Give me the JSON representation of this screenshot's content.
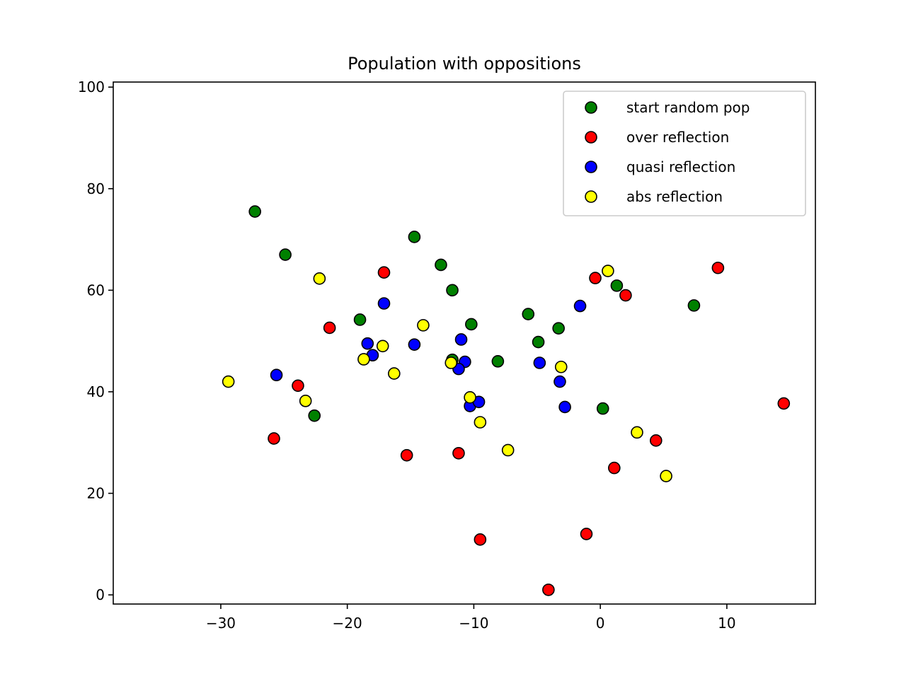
{
  "chart_data": {
    "type": "scatter",
    "title": "Population with oppositions",
    "xlabel": "",
    "ylabel": "",
    "xlim": [
      -38.5,
      17
    ],
    "ylim": [
      -1.8,
      101
    ],
    "x_ticks": [
      -30,
      -20,
      -10,
      0,
      10
    ],
    "x_tick_labels": [
      "−30",
      "−20",
      "−10",
      "0",
      "10"
    ],
    "y_ticks": [
      0,
      20,
      40,
      60,
      80,
      100
    ],
    "y_tick_labels": [
      "0",
      "20",
      "40",
      "60",
      "80",
      "100"
    ],
    "grid": false,
    "legend_position": "top-right",
    "series": [
      {
        "name": "start random pop",
        "color": "#008000",
        "points": [
          [
            -27.3,
            75.5
          ],
          [
            -24.9,
            67.0
          ],
          [
            -14.7,
            70.5
          ],
          [
            -12.6,
            65.0
          ],
          [
            -11.7,
            60.0
          ],
          [
            -19.0,
            54.2
          ],
          [
            -10.2,
            53.3
          ],
          [
            -5.7,
            55.3
          ],
          [
            -3.3,
            52.5
          ],
          [
            -4.9,
            49.8
          ],
          [
            -8.1,
            46.0
          ],
          [
            -11.7,
            46.3
          ],
          [
            1.3,
            60.9
          ],
          [
            7.4,
            57.0
          ],
          [
            0.2,
            36.7
          ],
          [
            -22.6,
            35.3
          ]
        ]
      },
      {
        "name": "over reflection",
        "color": "#ff0000",
        "points": [
          [
            -17.1,
            63.5
          ],
          [
            -21.4,
            52.6
          ],
          [
            -23.9,
            41.2
          ],
          [
            -25.8,
            30.8
          ],
          [
            -15.3,
            27.5
          ],
          [
            -11.2,
            27.9
          ],
          [
            -9.5,
            10.9
          ],
          [
            -4.1,
            1.0
          ],
          [
            -1.1,
            12.0
          ],
          [
            1.1,
            25.0
          ],
          [
            4.4,
            30.4
          ],
          [
            14.5,
            37.7
          ],
          [
            9.3,
            64.4
          ],
          [
            2.0,
            59.0
          ],
          [
            -0.4,
            62.4
          ]
        ]
      },
      {
        "name": "quasi reflection",
        "color": "#0000ff",
        "points": [
          [
            -17.1,
            57.4
          ],
          [
            -18.4,
            49.5
          ],
          [
            -18.0,
            47.2
          ],
          [
            -14.7,
            49.3
          ],
          [
            -11.0,
            50.3
          ],
          [
            -10.7,
            45.9
          ],
          [
            -11.2,
            44.5
          ],
          [
            -25.6,
            43.3
          ],
          [
            -10.3,
            37.2
          ],
          [
            -9.6,
            38.0
          ],
          [
            -4.8,
            45.7
          ],
          [
            -3.2,
            42.0
          ],
          [
            -2.8,
            37.0
          ],
          [
            -1.6,
            56.9
          ]
        ]
      },
      {
        "name": "abs reflection",
        "color": "#ffff00",
        "points": [
          [
            -22.2,
            62.3
          ],
          [
            -14.0,
            53.1
          ],
          [
            -17.2,
            49.0
          ],
          [
            -18.7,
            46.4
          ],
          [
            -16.3,
            43.6
          ],
          [
            -11.8,
            45.7
          ],
          [
            -29.4,
            42.0
          ],
          [
            -23.3,
            38.2
          ],
          [
            -10.3,
            38.9
          ],
          [
            -9.5,
            34.0
          ],
          [
            -7.3,
            28.5
          ],
          [
            -3.1,
            44.9
          ],
          [
            0.6,
            63.8
          ],
          [
            2.9,
            32.0
          ],
          [
            5.2,
            23.4
          ]
        ]
      }
    ]
  }
}
